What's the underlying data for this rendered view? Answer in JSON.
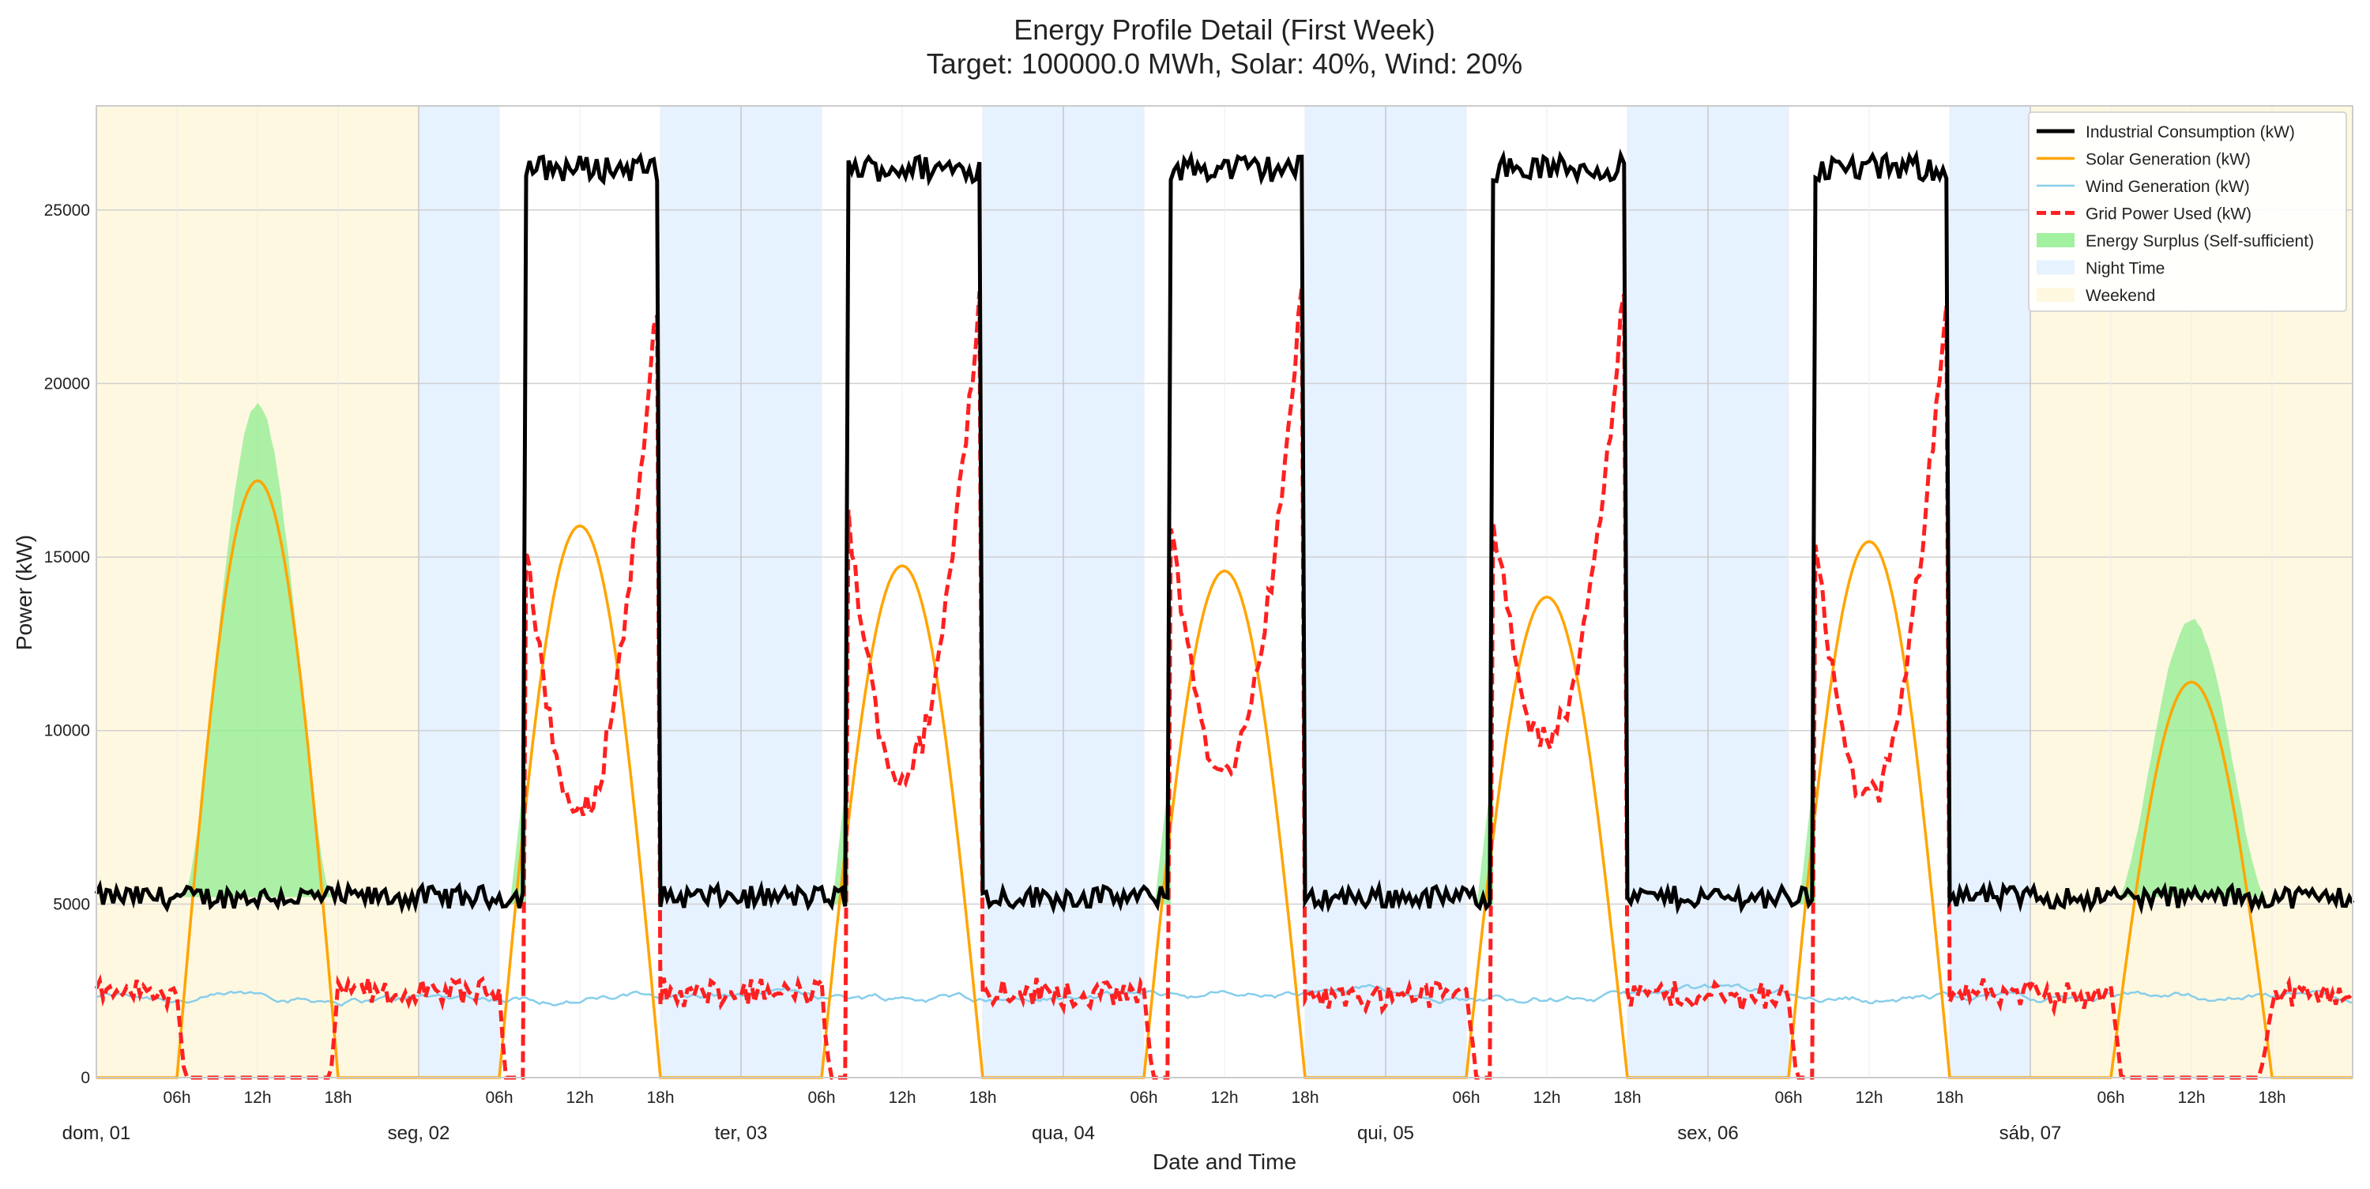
{
  "chart_data": {
    "type": "line",
    "title_line1": "Energy Profile Detail (First Week)",
    "title_line2": "Target: 100000.0 MWh, Solar: 40%, Wind: 20%",
    "xlabel": "Date and Time",
    "ylabel": "Power (kW)",
    "ylim": [
      0,
      28000
    ],
    "xlim_hours": [
      0,
      168
    ],
    "yticks": [
      0,
      5000,
      10000,
      15000,
      20000,
      25000
    ],
    "grid": true,
    "legend_position": "top-right",
    "days": [
      {
        "label": "dom, 01",
        "weekend": true,
        "workday": false,
        "solar_peak": 17200,
        "surplus_peak": 19400
      },
      {
        "label": "seg, 02",
        "weekend": false,
        "workday": true,
        "solar_peak": 15900
      },
      {
        "label": "ter, 03",
        "weekend": false,
        "workday": true,
        "solar_peak": 14750
      },
      {
        "label": "qua, 04",
        "weekend": false,
        "workday": true,
        "solar_peak": 14600
      },
      {
        "label": "qui, 05",
        "weekend": false,
        "workday": true,
        "solar_peak": 13850
      },
      {
        "label": "sex, 06",
        "weekend": false,
        "workday": true,
        "solar_peak": 15450
      },
      {
        "label": "sáb, 07",
        "weekend": true,
        "workday": false,
        "solar_peak": 11400,
        "surplus_peak": 13200
      }
    ],
    "hour_ticks": [
      "06h",
      "12h",
      "18h"
    ],
    "consumption": {
      "base_kW": 5200,
      "workday_kW": 26200,
      "workday_start_h": 8,
      "workday_end_h": 18
    },
    "solar": {
      "sunrise_h": 6,
      "sunset_h": 18
    },
    "wind": {
      "mean_kW": 2350
    },
    "night_bands_h": [
      [
        0,
        6
      ],
      [
        18,
        24
      ]
    ],
    "colors": {
      "consumption": "#000000",
      "solar": "#ffa500",
      "wind": "#87ceeb",
      "grid": "#ff2020",
      "surplus": "#90ee90",
      "night": "#e6f2ff",
      "weekend": "#fff8e1"
    },
    "series": [
      {
        "key": "consumption",
        "name": "Industrial Consumption (kW)"
      },
      {
        "key": "solar",
        "name": "Solar Generation (kW)"
      },
      {
        "key": "wind",
        "name": "Wind Generation (kW)"
      },
      {
        "key": "grid",
        "name": "Grid Power Used (kW)"
      },
      {
        "key": "surplus",
        "name": "Energy Surplus (Self-sufficient)"
      },
      {
        "key": "night",
        "name": "Night Time"
      },
      {
        "key": "weekend",
        "name": "Weekend"
      }
    ]
  }
}
